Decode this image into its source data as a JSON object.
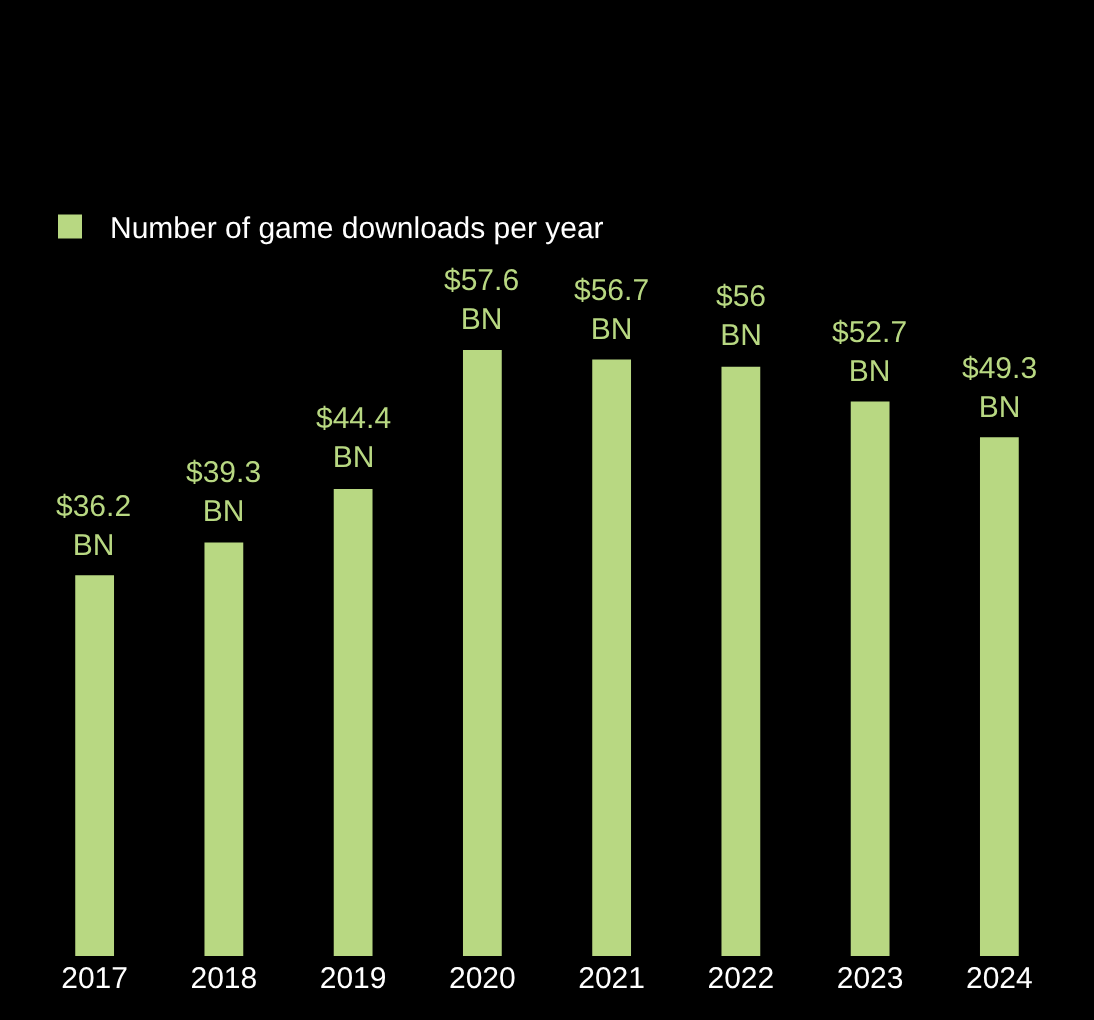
{
  "chart_data": {
    "type": "bar",
    "categories": [
      "2017",
      "2018",
      "2019",
      "2020",
      "2021",
      "2022",
      "2023",
      "2024"
    ],
    "series": [
      {
        "name": "Number of game downloads per year",
        "color": "#b8d882",
        "values": [
          36.2,
          39.3,
          44.4,
          57.6,
          56.7,
          56,
          52.7,
          49.3
        ],
        "value_labels": [
          "$36.2 BN",
          "$39.3 BN",
          "$44.4 BN",
          "$57.6 BN",
          "$56.7 BN",
          "$56 BN",
          "$52.7 BN",
          "$49.3 BN"
        ]
      }
    ],
    "legend": "top left",
    "tick_labels": "x",
    "grid": false
  }
}
